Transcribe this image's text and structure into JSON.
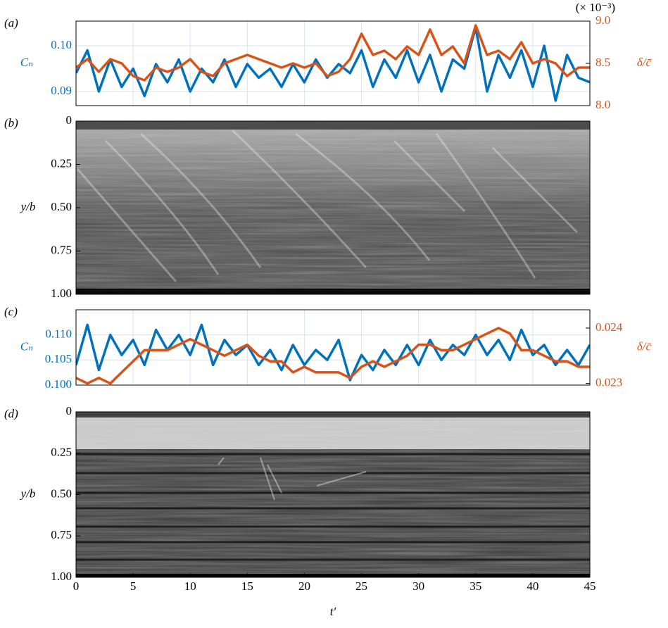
{
  "chart_data": [
    {
      "type": "line",
      "panel_label": "(a)",
      "ylabel": "Cₙ",
      "y2label": "δ/c̄",
      "annotation": "(× 10⁻³)",
      "x": [
        0,
        1,
        2,
        3,
        4,
        5,
        6,
        7,
        8,
        9,
        10,
        11,
        12,
        13,
        14,
        15,
        16,
        17,
        18,
        19,
        20,
        21,
        22,
        23,
        24,
        25,
        26,
        27,
        28,
        29,
        30,
        31,
        32,
        33,
        34,
        35,
        36,
        37,
        38,
        39,
        40,
        41,
        42,
        43,
        44,
        45
      ],
      "xlim": [
        0,
        45
      ],
      "xticks": [
        0,
        5,
        10,
        15,
        20,
        25,
        30,
        35,
        40,
        45
      ],
      "grid": true,
      "ylim": [
        0.0869,
        0.1054
      ],
      "yticks": [
        {
          "value": 0.09,
          "label": "0.09"
        },
        {
          "value": 0.1,
          "label": "0.10"
        }
      ],
      "y2lim": [
        8.0,
        9.0
      ],
      "y2ticks": [
        {
          "value": 8,
          "label": "8.0"
        },
        {
          "value": 8.5,
          "label": "8.5"
        },
        {
          "value": 9,
          "label": "9.0"
        }
      ],
      "series": [
        {
          "name": "Cₙ",
          "color": "#0072bd",
          "values": [
            0.094,
            0.099,
            0.09,
            0.097,
            0.091,
            0.095,
            0.089,
            0.096,
            0.092,
            0.097,
            0.09,
            0.095,
            0.092,
            0.097,
            0.091,
            0.096,
            0.093,
            0.095,
            0.091,
            0.096,
            0.092,
            0.097,
            0.093,
            0.096,
            0.094,
            0.099,
            0.091,
            0.097,
            0.093,
            0.099,
            0.092,
            0.098,
            0.09,
            0.097,
            0.095,
            0.104,
            0.09,
            0.098,
            0.093,
            0.099,
            0.091,
            0.1,
            0.088,
            0.098,
            0.093,
            0.092
          ]
        },
        {
          "name": "δ/c̄",
          "color": "#d95319",
          "axis": "y2",
          "values": [
            8.45,
            8.55,
            8.4,
            8.55,
            8.5,
            8.35,
            8.3,
            8.45,
            8.4,
            8.45,
            8.55,
            8.4,
            8.35,
            8.5,
            8.55,
            8.6,
            8.55,
            8.5,
            8.45,
            8.5,
            8.45,
            8.5,
            8.35,
            8.4,
            8.55,
            8.85,
            8.6,
            8.65,
            8.55,
            8.7,
            8.6,
            8.9,
            8.6,
            8.7,
            8.5,
            8.95,
            8.6,
            8.65,
            8.55,
            8.75,
            8.5,
            8.55,
            8.5,
            8.35,
            8.45,
            8.45
          ]
        }
      ]
    },
    {
      "type": "image",
      "panel_label": "(b)",
      "ylabel": "y/b",
      "xlim": [
        0,
        45
      ],
      "ylim": [
        0,
        1
      ],
      "yinvert": true,
      "yticks": [
        0,
        0.25,
        {
          "value": 0.5,
          "label": "0.50"
        },
        0.75,
        {
          "value": 1,
          "label": "1.00"
        }
      ]
    },
    {
      "type": "line",
      "panel_label": "(c)",
      "ylabel": "Cₙ",
      "y2label": "δ/c̄",
      "x": [
        0,
        1,
        2,
        3,
        4,
        5,
        6,
        7,
        8,
        9,
        10,
        11,
        12,
        13,
        14,
        15,
        16,
        17,
        18,
        19,
        20,
        21,
        22,
        23,
        24,
        25,
        26,
        27,
        28,
        29,
        30,
        31,
        32,
        33,
        34,
        35,
        36,
        37,
        38,
        39,
        40,
        41,
        42,
        43,
        44,
        45
      ],
      "xlim": [
        0,
        45
      ],
      "xticks": [
        0,
        5,
        10,
        15,
        20,
        25,
        30,
        35,
        40,
        45
      ],
      "grid": true,
      "ylim": [
        0.1,
        0.115
      ],
      "yticks": [
        {
          "value": 0.1,
          "label": "0.100"
        },
        0.105,
        {
          "value": 0.11,
          "label": "0.110"
        }
      ],
      "y2lim": [
        0.02297,
        0.02433
      ],
      "y2ticks": [
        0.023,
        0.024
      ],
      "series": [
        {
          "name": "Cₙ",
          "color": "#0072bd",
          "values": [
            0.104,
            0.112,
            0.103,
            0.11,
            0.106,
            0.109,
            0.104,
            0.111,
            0.107,
            0.11,
            0.106,
            0.112,
            0.104,
            0.109,
            0.106,
            0.108,
            0.104,
            0.107,
            0.103,
            0.108,
            0.104,
            0.107,
            0.105,
            0.109,
            0.101,
            0.106,
            0.103,
            0.107,
            0.104,
            0.108,
            0.104,
            0.109,
            0.105,
            0.108,
            0.106,
            0.11,
            0.106,
            0.109,
            0.105,
            0.111,
            0.106,
            0.108,
            0.104,
            0.107,
            0.104,
            0.108
          ]
        },
        {
          "name": "δ/c̄",
          "color": "#d95319",
          "axis": "y2",
          "values": [
            0.0231,
            0.023,
            0.0231,
            0.023,
            0.0232,
            0.0234,
            0.0236,
            0.0236,
            0.0236,
            0.0237,
            0.0238,
            0.0237,
            0.0236,
            0.0235,
            0.0236,
            0.0237,
            0.0235,
            0.0234,
            0.0234,
            0.0232,
            0.0233,
            0.0232,
            0.0232,
            0.0232,
            0.0231,
            0.0233,
            0.0234,
            0.0233,
            0.0234,
            0.0235,
            0.0237,
            0.0237,
            0.0236,
            0.0236,
            0.0237,
            0.0238,
            0.0239,
            0.024,
            0.0239,
            0.0236,
            0.0236,
            0.0235,
            0.0234,
            0.0234,
            0.0233,
            0.0233
          ]
        }
      ]
    },
    {
      "type": "image",
      "panel_label": "(d)",
      "ylabel": "y/b",
      "xlabel": "t′",
      "xlim": [
        0,
        45
      ],
      "xticks": [
        0,
        5,
        10,
        15,
        20,
        25,
        30,
        35,
        40,
        45
      ],
      "ylim": [
        0,
        1
      ],
      "yinvert": true,
      "yticks": [
        0,
        0.25,
        {
          "value": 0.5,
          "label": "0.50"
        },
        0.75,
        {
          "value": 1,
          "label": "1.00"
        }
      ]
    }
  ]
}
